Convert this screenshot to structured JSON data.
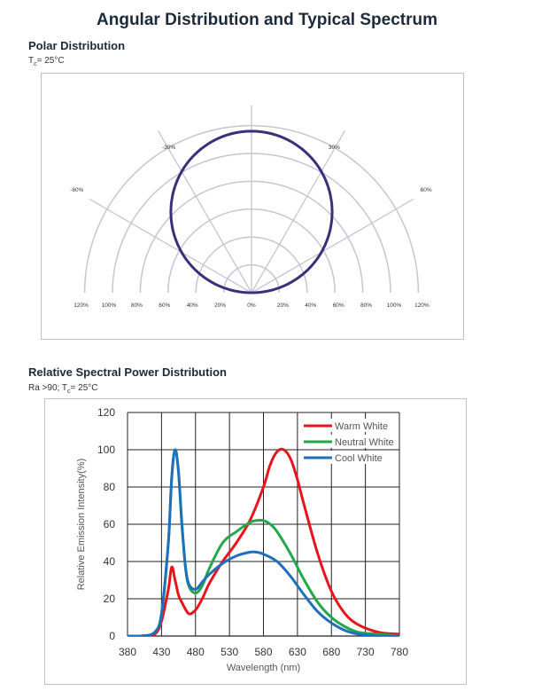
{
  "page": {
    "title": "Angular Distribution and Typical Spectrum"
  },
  "polar_section": {
    "heading": "Polar  Distribution",
    "condition_t": "T",
    "condition_sub": "c",
    "condition_rest": "= 25°C"
  },
  "spectrum_section": {
    "heading": "Relative Spectral Power Distribution",
    "condition_prefix": "Ra >90; T",
    "condition_sub": "c",
    "condition_rest": "= 25°C"
  },
  "colors": {
    "warm": "#e8141b",
    "neutral": "#22a84a",
    "cool": "#1f6fbf",
    "polar_curve": "#3b2f7a",
    "polar_grid": "#c9c3d3"
  },
  "chart_data": [
    {
      "type": "polar",
      "angle_labels": [
        "-30%",
        "30%",
        "-60%",
        "60%"
      ],
      "radial_labels": [
        "120%",
        "100%",
        "80%",
        "60%",
        "40%",
        "20%",
        "0%",
        "20%",
        "40%",
        "60%",
        "80%",
        "100%",
        "120%"
      ],
      "radial_max": 120,
      "rings": [
        20,
        40,
        60,
        80,
        100,
        120
      ],
      "spokes_deg": [
        -90,
        -60,
        -30,
        0,
        30,
        60,
        90
      ],
      "series": [
        {
          "angles_deg": [
            -90,
            -80,
            -70,
            -60,
            -50,
            -40,
            -30,
            -20,
            -10,
            0,
            10,
            20,
            30,
            40,
            50,
            60,
            70,
            80,
            90
          ],
          "values": [
            0,
            17,
            34,
            50,
            64,
            77,
            87,
            94,
            98.5,
            100,
            98.5,
            94,
            87,
            77,
            64,
            50,
            34,
            17,
            0
          ]
        }
      ]
    },
    {
      "type": "line",
      "title": "",
      "xlabel": "Wavelength (nm)",
      "ylabel": "Relative Emission Intensity(%)",
      "xlim": [
        380,
        780
      ],
      "ylim": [
        0,
        120
      ],
      "xticks": [
        380,
        430,
        480,
        530,
        580,
        630,
        680,
        730,
        780
      ],
      "yticks": [
        0,
        20,
        40,
        60,
        80,
        100,
        120
      ],
      "grid": true,
      "legend_position": "top-right",
      "series": [
        {
          "name": "Warm White",
          "x": [
            380,
            400,
            420,
            430,
            440,
            445,
            450,
            455,
            460,
            470,
            480,
            490,
            500,
            520,
            540,
            560,
            580,
            590,
            600,
            610,
            620,
            630,
            640,
            660,
            680,
            700,
            720,
            750,
            780
          ],
          "y": [
            0,
            0,
            1,
            8,
            25,
            37,
            30,
            22,
            18,
            12,
            14,
            20,
            28,
            40,
            50,
            62,
            80,
            92,
            99,
            100,
            95,
            84,
            70,
            44,
            24,
            12,
            6,
            2,
            1
          ]
        },
        {
          "name": "Neutral White",
          "x": [
            380,
            400,
            420,
            430,
            440,
            445,
            450,
            455,
            460,
            465,
            470,
            480,
            490,
            500,
            520,
            540,
            560,
            570,
            580,
            590,
            600,
            620,
            640,
            660,
            680,
            700,
            720,
            750,
            780
          ],
          "y": [
            0,
            0,
            2,
            12,
            50,
            85,
            100,
            88,
            60,
            38,
            27,
            23,
            27,
            36,
            50,
            56,
            61,
            62,
            62,
            60,
            56,
            44,
            30,
            18,
            10,
            5,
            2,
            1,
            0
          ]
        },
        {
          "name": "Cool White",
          "x": [
            380,
            400,
            420,
            430,
            440,
            445,
            450,
            455,
            460,
            465,
            470,
            480,
            490,
            500,
            520,
            540,
            560,
            570,
            580,
            600,
            620,
            640,
            660,
            680,
            700,
            720,
            750,
            780
          ],
          "y": [
            0,
            0,
            2,
            12,
            50,
            85,
            100,
            88,
            60,
            38,
            28,
            25,
            29,
            33,
            39,
            43,
            45,
            45,
            44,
            40,
            32,
            22,
            13,
            7,
            3,
            1,
            0,
            0
          ]
        }
      ]
    }
  ]
}
